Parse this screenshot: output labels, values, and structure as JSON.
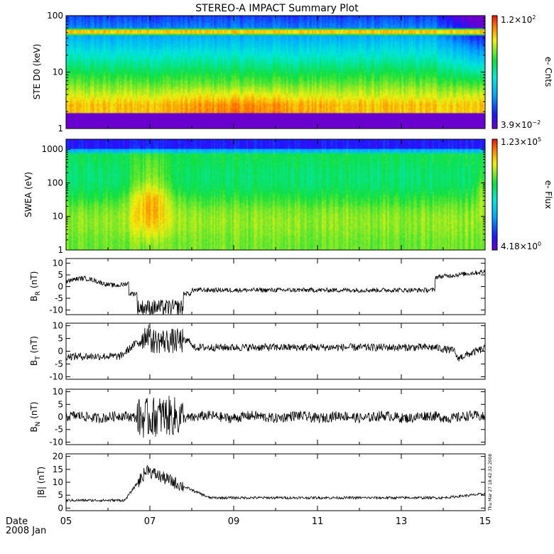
{
  "title": "STEREO-A IMPACT Summary Plot",
  "timestamp": "Thu Mar 27 18:42:32 2008",
  "date_label": "Date",
  "date_value": "2008 Jan",
  "colors": {
    "axis": "#000000",
    "trace": "#000000",
    "background": "#ffffff"
  },
  "chart_data": [
    {
      "type": "heatmap",
      "ylabel": "STE D0 (keV)",
      "yscale": "log",
      "ylim": [
        1,
        100
      ],
      "yticks": [
        "1",
        "10",
        "100"
      ],
      "colorbar": {
        "label": "e- Cnts",
        "max": "1.2×10",
        "max_exp": "2",
        "min": "3.9×10",
        "min_exp": "−2"
      }
    },
    {
      "type": "heatmap",
      "ylabel": "SWEA (eV)",
      "yscale": "log",
      "ylim": [
        1,
        2000
      ],
      "yticks": [
        "1",
        "10",
        "100",
        "1000"
      ],
      "colorbar": {
        "label": "e- Flux",
        "max": "1.23×10",
        "max_exp": "5",
        "min": "4.18×10",
        "min_exp": "0"
      }
    },
    {
      "type": "line",
      "ylabel": "B",
      "ylabel_sub": "R",
      "ylabel_unit": "(nT)",
      "ylim": [
        -12,
        12
      ],
      "yticks": [
        "-10",
        "-5",
        "0",
        "5",
        "10"
      ]
    },
    {
      "type": "line",
      "ylabel": "B",
      "ylabel_sub": "T",
      "ylabel_unit": "(nT)",
      "ylim": [
        -11,
        11
      ],
      "yticks": [
        "-10",
        "-5",
        "0",
        "5",
        "10"
      ]
    },
    {
      "type": "line",
      "ylabel": "B",
      "ylabel_sub": "N",
      "ylabel_unit": "(nT)",
      "ylim": [
        -11,
        11
      ],
      "yticks": [
        "-10",
        "-5",
        "0",
        "5",
        "10"
      ]
    },
    {
      "type": "line",
      "ylabel": "|B| (nT)",
      "ylim": [
        -1,
        21
      ],
      "yticks": [
        "0",
        "5",
        "10",
        "15",
        "20"
      ]
    }
  ],
  "xaxis": {
    "ticks": [
      "05",
      "07",
      "09",
      "11",
      "13",
      "15"
    ]
  }
}
